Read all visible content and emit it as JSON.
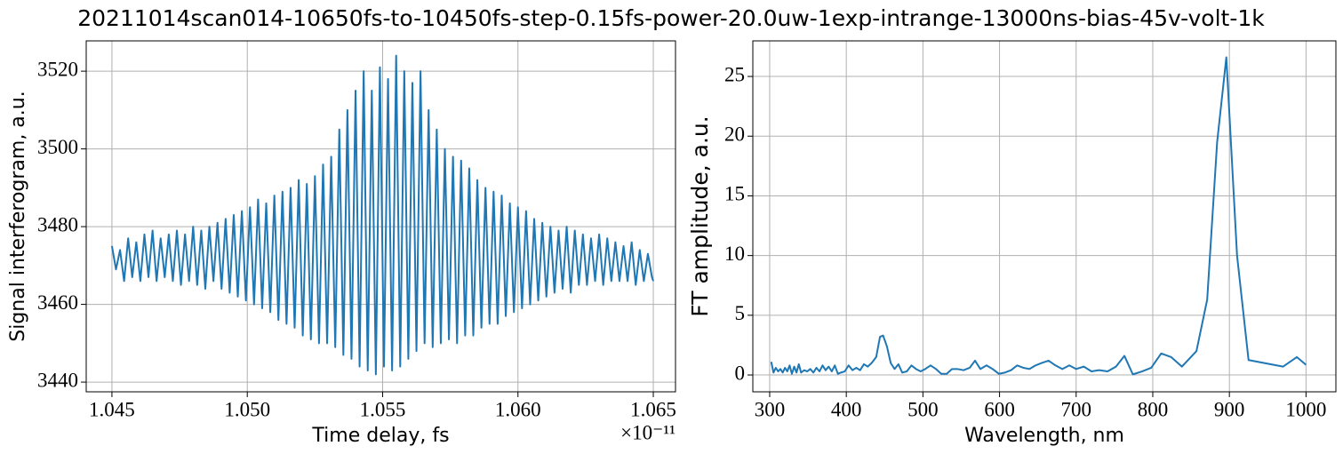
{
  "title": "20211014scan014-10650fs-to-10450fs-step-0.15fs-power-20.0uw-1exp-intrange-13000ns-bias-45v-volt-1k",
  "chart_data": [
    {
      "type": "line",
      "xlabel": "Time delay, fs",
      "ylabel": "Signal interferogram, a.u.",
      "x_offset_label": "×10⁻¹¹",
      "color": "#1f77b4",
      "grid": true,
      "xlim": [
        1.04405,
        1.06582
      ],
      "ylim": [
        3437.5,
        3527.8
      ],
      "xticks": [
        1.045,
        {
          "value": 1.05,
          "label": "1.050"
        },
        1.055,
        {
          "value": 1.06,
          "label": "1.060"
        },
        1.065
      ],
      "yticks": [
        3440,
        3460,
        3480,
        3500,
        3520
      ],
      "x": [
        1.045,
        1.04515,
        1.0453,
        1.04545,
        1.0456,
        1.04575,
        1.0459,
        1.04605,
        1.0462,
        1.04635,
        1.0465,
        1.04665,
        1.0468,
        1.04695,
        1.0471,
        1.04725,
        1.0474,
        1.04755,
        1.0477,
        1.04785,
        1.048,
        1.04815,
        1.0483,
        1.04845,
        1.0486,
        1.04875,
        1.0489,
        1.04905,
        1.0492,
        1.04935,
        1.0495,
        1.04965,
        1.0498,
        1.04995,
        1.0501,
        1.05025,
        1.0504,
        1.05055,
        1.0507,
        1.05085,
        1.051,
        1.05115,
        1.0513,
        1.05145,
        1.0516,
        1.05175,
        1.0519,
        1.05205,
        1.0522,
        1.05235,
        1.0525,
        1.05265,
        1.0528,
        1.05295,
        1.0531,
        1.05325,
        1.0534,
        1.05355,
        1.0537,
        1.05385,
        1.054,
        1.05415,
        1.0543,
        1.05445,
        1.0546,
        1.05475,
        1.0549,
        1.05505,
        1.0552,
        1.05535,
        1.0555,
        1.05565,
        1.0558,
        1.05595,
        1.0561,
        1.05625,
        1.0564,
        1.05655,
        1.0567,
        1.05685,
        1.057,
        1.05715,
        1.0573,
        1.05745,
        1.0576,
        1.05775,
        1.0579,
        1.05805,
        1.0582,
        1.05835,
        1.0585,
        1.05865,
        1.0588,
        1.05895,
        1.0591,
        1.05925,
        1.0594,
        1.05955,
        1.0597,
        1.05985,
        1.06,
        1.06015,
        1.0603,
        1.06045,
        1.0606,
        1.06075,
        1.0609,
        1.06105,
        1.0612,
        1.06135,
        1.0615,
        1.06165,
        1.0618,
        1.06195,
        1.0621,
        1.06225,
        1.0624,
        1.06255,
        1.0627,
        1.06285,
        1.063,
        1.06315,
        1.0633,
        1.06345,
        1.0636,
        1.06375,
        1.0639,
        1.06405,
        1.0642,
        1.06435,
        1.0645,
        1.06465,
        1.0648,
        1.06495,
        1.065
      ],
      "values": [
        3475,
        3469,
        3474,
        3466,
        3477,
        3467,
        3476,
        3466,
        3478,
        3467,
        3479,
        3466,
        3477,
        3467,
        3478,
        3466,
        3479,
        3465,
        3478,
        3466,
        3480,
        3465,
        3479,
        3464,
        3480,
        3466,
        3481,
        3464,
        3482,
        3463,
        3483,
        3462,
        3484,
        3461,
        3485,
        3460,
        3487,
        3459,
        3486,
        3458,
        3488,
        3456,
        3489,
        3455,
        3490,
        3454,
        3492,
        3452,
        3491,
        3451,
        3493,
        3450,
        3496,
        3450,
        3498,
        3449,
        3505,
        3447,
        3510,
        3446,
        3515,
        3444,
        3520,
        3443,
        3515,
        3442,
        3521,
        3444,
        3518,
        3443,
        3524,
        3444,
        3520,
        3446,
        3517,
        3448,
        3520,
        3450,
        3510,
        3449,
        3505,
        3450,
        3500,
        3451,
        3498,
        3450,
        3497,
        3452,
        3495,
        3452,
        3492,
        3454,
        3490,
        3455,
        3489,
        3455,
        3488,
        3457,
        3486,
        3458,
        3485,
        3459,
        3484,
        3460,
        3482,
        3461,
        3481,
        3462,
        3480,
        3463,
        3479,
        3464,
        3480,
        3463,
        3479,
        3465,
        3478,
        3465,
        3477,
        3466,
        3478,
        3465,
        3477,
        3466,
        3476,
        3466,
        3475,
        3466,
        3476,
        3465,
        3474,
        3466,
        3473,
        3467,
        3466
      ]
    },
    {
      "type": "line",
      "xlabel": "Wavelength, nm",
      "ylabel": "FT amplitude, a.u.",
      "color": "#1f77b4",
      "grid": true,
      "xlim": [
        278,
        1039
      ],
      "ylim": [
        -1.41,
        27.98
      ],
      "xticks": [
        300,
        400,
        500,
        600,
        700,
        800,
        900,
        1000
      ],
      "yticks": [
        0,
        5,
        10,
        15,
        20,
        25
      ],
      "x": [
        302,
        305,
        308,
        311,
        314,
        317,
        320,
        323,
        326,
        329,
        332,
        335,
        338,
        341,
        345,
        349,
        353,
        357,
        361,
        365,
        369,
        373,
        377,
        381,
        385,
        389,
        393,
        398,
        403,
        408,
        413,
        418,
        423,
        428,
        433,
        439,
        444,
        448,
        453,
        458,
        463,
        468,
        473,
        479,
        485,
        491,
        497,
        503,
        510,
        517,
        524,
        531,
        538,
        545,
        553,
        561,
        568,
        575,
        583,
        591,
        599,
        607,
        615,
        623,
        631,
        639,
        647,
        655,
        664,
        673,
        682,
        691,
        700,
        710,
        720,
        730,
        741,
        752,
        763,
        774,
        786,
        798,
        811,
        824,
        838,
        857,
        871,
        884,
        896,
        910,
        925,
        970,
        988,
        1000
      ],
      "values": [
        1.1,
        0.2,
        0.6,
        0.3,
        0.5,
        0.2,
        0.6,
        0.3,
        0.8,
        0.1,
        0.7,
        0.2,
        0.9,
        0.2,
        0.4,
        0.3,
        0.5,
        0.2,
        0.6,
        0.3,
        0.8,
        0.4,
        0.7,
        0.3,
        0.8,
        0.1,
        0.2,
        0.3,
        0.8,
        0.4,
        0.6,
        0.4,
        0.9,
        0.7,
        1.0,
        1.5,
        3.2,
        3.3,
        2.4,
        1.0,
        0.5,
        0.9,
        0.2,
        0.3,
        0.8,
        0.5,
        0.3,
        0.5,
        0.8,
        0.5,
        0.1,
        0.1,
        0.5,
        0.5,
        0.4,
        0.6,
        1.2,
        0.5,
        0.8,
        0.5,
        0.1,
        0.2,
        0.4,
        0.8,
        0.6,
        0.5,
        0.8,
        1.0,
        1.2,
        0.8,
        0.5,
        0.8,
        0.5,
        0.7,
        0.3,
        0.4,
        0.3,
        0.7,
        1.6,
        0.05,
        0.3,
        0.6,
        1.8,
        1.5,
        0.7,
        2.0,
        6.3,
        19.5,
        26.6,
        10.0,
        1.25,
        0.7,
        1.5,
        0.85
      ]
    }
  ]
}
